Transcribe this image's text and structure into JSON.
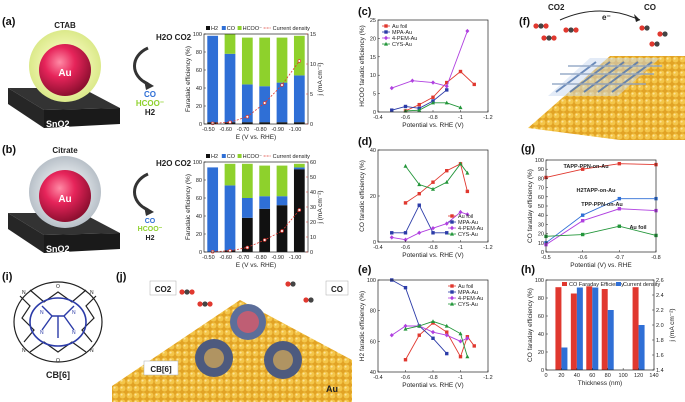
{
  "panel_labels": [
    "(a)",
    "(b)",
    "(c)",
    "(d)",
    "(e)",
    "(f)",
    "(g)",
    "(h)",
    "(i)",
    "(j)"
  ],
  "scheme_a": {
    "cap": "CTAB",
    "core": "Au",
    "support": "SnO2",
    "reactants": "H2O  CO2",
    "products": [
      "CO",
      "HCOO⁻",
      "H2"
    ]
  },
  "scheme_b": {
    "cap": "Citrate",
    "core": "Au",
    "support": "SnO2",
    "reactants": "H2O  CO2",
    "products": [
      "CO",
      "HCOO⁻",
      "H2"
    ]
  },
  "scheme_f": {
    "reactant": "CO2",
    "electron": "e⁻",
    "product": "CO"
  },
  "scheme_i": {
    "name": "CB[6]"
  },
  "scheme_j": {
    "co2": "CO2",
    "co": "CO",
    "cb": "CB[6]",
    "au": "Au"
  },
  "colors": {
    "h2": "#111111",
    "co": "#2f6fd6",
    "hcoo": "#8ed12c",
    "cd": "#e0382f",
    "au": "#e0382f",
    "mpa": "#2b3ba8",
    "pem": "#b040e0",
    "cys": "#23963a",
    "gold": "#e8b43a"
  },
  "chart_data": [
    {
      "id": "a",
      "type": "bar",
      "stacked": true,
      "categories": [
        "-0.50",
        "-0.60",
        "-0.70",
        "-0.80",
        "-0.90",
        "-1.00"
      ],
      "series": [
        {
          "name": "H2",
          "values": [
            2,
            2,
            2,
            2,
            2,
            2
          ]
        },
        {
          "name": "CO",
          "values": [
            96,
            76,
            42,
            40,
            44,
            52
          ]
        },
        {
          "name": "HCOO⁻",
          "values": [
            0,
            22,
            52,
            54,
            50,
            44
          ]
        }
      ],
      "line": {
        "name": "Current density",
        "values": [
          0.1,
          0.3,
          1.2,
          3.5,
          6.5,
          10.5
        ]
      },
      "xlabel": "E (V vs. RHE)",
      "ylabel": "Faradaic efficiency (%)",
      "ylabel_right": "j (mA cm⁻²)",
      "ylim": [
        0,
        100
      ],
      "ylim_right": [
        0,
        15
      ],
      "yticks": [
        0,
        20,
        40,
        60,
        80,
        100
      ],
      "yticks_right": [
        0,
        5,
        10,
        15
      ]
    },
    {
      "id": "b",
      "type": "bar",
      "stacked": true,
      "categories": [
        "-0.50",
        "-0.60",
        "-0.70",
        "-0.80",
        "-0.90",
        "-1.00"
      ],
      "series": [
        {
          "name": "H2",
          "values": [
            0,
            2,
            38,
            48,
            52,
            92
          ]
        },
        {
          "name": "CO",
          "values": [
            94,
            72,
            22,
            14,
            10,
            2
          ]
        },
        {
          "name": "HCOO⁻",
          "values": [
            0,
            24,
            38,
            34,
            34,
            4
          ]
        }
      ],
      "line": {
        "name": "Current density",
        "values": [
          0.2,
          0.8,
          3,
          8,
          14,
          28
        ]
      },
      "xlabel": "E (V vs. RHE)",
      "ylabel": "Faradaic efficiency (%)",
      "ylabel_right": "j (mA cm⁻²)",
      "ylim": [
        0,
        100
      ],
      "ylim_right": [
        0,
        60
      ],
      "yticks": [
        0,
        20,
        40,
        60,
        80,
        100
      ],
      "yticks_right": [
        0,
        10,
        20,
        30,
        40,
        50,
        60
      ]
    },
    {
      "id": "c",
      "type": "line",
      "xlabel": "Potential vs. RHE (V)",
      "ylabel": "HCOO faradic efficiency (%)",
      "xlim": [
        -0.4,
        -1.2
      ],
      "ylim": [
        0,
        25
      ],
      "xticks": [
        -0.4,
        -0.6,
        -0.8,
        -1.0,
        -1.2
      ],
      "yticks": [
        0,
        5,
        10,
        15,
        20,
        25
      ],
      "series": [
        {
          "name": "Au foil",
          "x": [
            -0.6,
            -0.7,
            -0.8,
            -0.9,
            -1.0,
            -1.1
          ],
          "y": [
            0.3,
            2,
            4,
            8,
            11,
            7.5
          ]
        },
        {
          "name": "MPA-Au",
          "x": [
            -0.5,
            -0.6,
            -0.7,
            -0.8,
            -0.9
          ],
          "y": [
            0.5,
            1.5,
            1,
            3,
            6
          ]
        },
        {
          "name": "4-PEM-Au",
          "x": [
            -0.5,
            -0.65,
            -0.8,
            -0.9,
            -1.05
          ],
          "y": [
            6.5,
            8.5,
            8,
            7,
            22
          ]
        },
        {
          "name": "CYS-Au",
          "x": [
            -0.6,
            -0.7,
            -0.8,
            -0.9,
            -1.0
          ],
          "y": [
            0.3,
            0.5,
            2.5,
            2.5,
            1.2
          ]
        }
      ]
    },
    {
      "id": "d",
      "type": "line",
      "xlabel": "Potential vs. RHE (V)",
      "ylabel": "CO faradic efficiency (%)",
      "xlim": [
        -0.4,
        -1.2
      ],
      "ylim": [
        0,
        40
      ],
      "xticks": [
        -0.4,
        -0.6,
        -0.8,
        -1.0,
        -1.2
      ],
      "yticks": [
        0,
        20,
        40
      ],
      "series": [
        {
          "name": "Au foil",
          "x": [
            -0.6,
            -0.7,
            -0.8,
            -0.9,
            -1.0,
            -1.05
          ],
          "y": [
            17,
            21,
            26,
            31,
            34,
            22
          ]
        },
        {
          "name": "MPA-Au",
          "x": [
            -0.5,
            -0.6,
            -0.7,
            -0.8,
            -0.9
          ],
          "y": [
            4,
            4,
            16,
            4,
            4
          ]
        },
        {
          "name": "4-PEM-Au",
          "x": [
            -0.5,
            -0.6,
            -0.7,
            -0.8,
            -0.9,
            -1.0,
            -1.05
          ],
          "y": [
            2,
            1,
            4,
            6,
            8,
            13,
            12
          ]
        },
        {
          "name": "CYS-Au",
          "x": [
            -0.6,
            -0.7,
            -0.8,
            -0.9,
            -1.0,
            -1.05
          ],
          "y": [
            33,
            25,
            23,
            26,
            34,
            30
          ]
        }
      ]
    },
    {
      "id": "e",
      "type": "line",
      "xlabel": "Potential vs. RHE (V)",
      "ylabel": "H2 faradic efficiency (%)",
      "xlim": [
        -0.4,
        -1.2
      ],
      "ylim": [
        40,
        100
      ],
      "xticks": [
        -0.4,
        -0.6,
        -0.8,
        -1.0,
        -1.2
      ],
      "yticks": [
        40,
        60,
        80,
        100
      ],
      "series": [
        {
          "name": "Au foil",
          "x": [
            -0.6,
            -0.7,
            -0.8,
            -0.9,
            -1.0,
            -1.05,
            -1.1
          ],
          "y": [
            48,
            64,
            72,
            66,
            50,
            63,
            57
          ]
        },
        {
          "name": "MPA-Au",
          "x": [
            -0.5,
            -0.6,
            -0.7,
            -0.8,
            -0.9
          ],
          "y": [
            100,
            95,
            70,
            62,
            52
          ]
        },
        {
          "name": "4-PEM-Au",
          "x": [
            -0.5,
            -0.6,
            -0.7,
            -0.8,
            -0.9,
            -1.0,
            -1.05
          ],
          "y": [
            64,
            70,
            70,
            66,
            64,
            60,
            62
          ]
        },
        {
          "name": "CYS-Au",
          "x": [
            -0.6,
            -0.7,
            -0.8,
            -0.9,
            -1.0,
            -1.05
          ],
          "y": [
            68,
            70,
            73,
            70,
            65,
            50
          ]
        }
      ]
    },
    {
      "id": "g",
      "type": "line",
      "xlabel": "Potential (V) vs. RHE",
      "ylabel": "CO faraday efficiency (%)",
      "xlim": [
        -0.5,
        -0.8
      ],
      "ylim": [
        0,
        100
      ],
      "xticks": [
        -0.5,
        -0.6,
        -0.7,
        -0.8
      ],
      "yticks": [
        0,
        10,
        20,
        30,
        40,
        50,
        60,
        70,
        80,
        90,
        100
      ],
      "series": [
        {
          "name": "TAPP-PPN-on-Au",
          "x": [
            -0.5,
            -0.6,
            -0.7,
            -0.8
          ],
          "y": [
            81,
            90,
            96,
            95
          ]
        },
        {
          "name": "H2TAPP-on-Au",
          "x": [
            -0.5,
            -0.6,
            -0.7,
            -0.8
          ],
          "y": [
            10,
            40,
            58,
            58
          ]
        },
        {
          "name": "TPP-PPN-on-Au",
          "x": [
            -0.5,
            -0.6,
            -0.7,
            -0.8
          ],
          "y": [
            8,
            34,
            47,
            45
          ]
        },
        {
          "name": "Au foil",
          "x": [
            -0.5,
            -0.6,
            -0.7,
            -0.8
          ],
          "y": [
            17,
            19,
            28,
            18
          ]
        }
      ]
    },
    {
      "id": "h",
      "type": "bar",
      "xlabel": "Thickness (nm)",
      "ylabel": "CO faraday efficiency (%)",
      "ylabel_right": "j (mA cm⁻²)",
      "categories": [
        "20",
        "40",
        "60",
        "80",
        "120"
      ],
      "x": [
        20,
        40,
        60,
        80,
        120
      ],
      "xticks": [
        0,
        20,
        40,
        60,
        80,
        100,
        120,
        140
      ],
      "ylim": [
        0,
        100
      ],
      "yticks": [
        0,
        20,
        40,
        60,
        80,
        100
      ],
      "ylim_right": [
        1.4,
        2.6
      ],
      "yticks_right": [
        1.4,
        1.6,
        1.8,
        2.0,
        2.2,
        2.4,
        2.6
      ],
      "series": [
        {
          "name": "CO Faraday Efficiency",
          "values": [
            92,
            85,
            93,
            90,
            92
          ]
        },
        {
          "name": "Current density",
          "values": [
            1.7,
            2.5,
            2.5,
            2.2,
            2.0
          ]
        }
      ]
    }
  ]
}
